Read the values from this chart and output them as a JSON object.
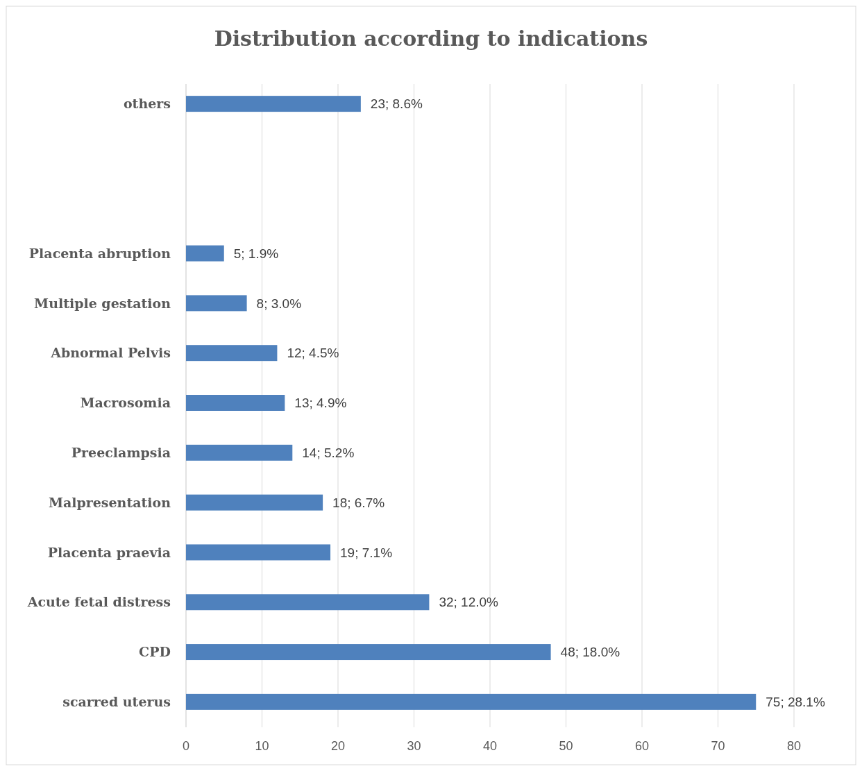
{
  "chart_data": {
    "type": "bar",
    "orientation": "horizontal",
    "title": "Distribution according to indications",
    "categories": [
      "others",
      null,
      null,
      "Placenta abruption",
      "Multiple gestation",
      "Abnormal Pelvis",
      "Macrosomia",
      "Preeclampsia",
      "Malpresentation",
      "Placenta praevia",
      "Acute fetal distress",
      "CPD",
      "scarred uterus"
    ],
    "values": [
      23,
      null,
      null,
      5,
      8,
      12,
      13,
      14,
      18,
      19,
      32,
      48,
      75
    ],
    "value_labels": [
      "23; 8.6%",
      null,
      null,
      "5; 1.9%",
      "8; 3.0%",
      "12; 4.5%",
      "13; 4.9%",
      "14; 5.2%",
      "18; 6.7%",
      "19; 7.1%",
      "32; 12.0%",
      "48; 18.0%",
      "75; 28.1%"
    ],
    "color": "#4f81bd",
    "xlim": [
      0,
      80
    ],
    "xticks": [
      0,
      10,
      20,
      30,
      40,
      50,
      60,
      70,
      80
    ],
    "grid": "x"
  }
}
